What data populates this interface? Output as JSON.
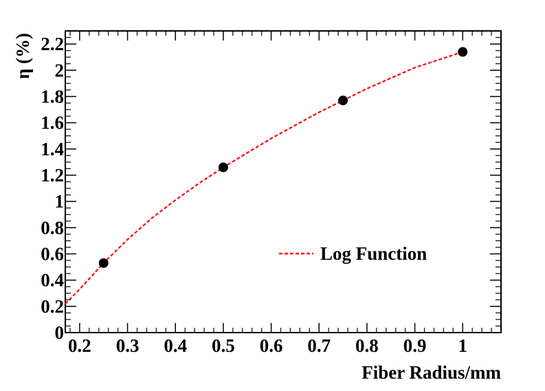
{
  "chart_data": {
    "type": "scatter",
    "xlabel": "Fiber Radius/mm",
    "ylabel": "η (%)",
    "xlim": [
      0.17,
      1.08
    ],
    "ylim": [
      0,
      2.3
    ],
    "x_ticks": [
      0.2,
      0.3,
      0.4,
      0.5,
      0.6,
      0.7,
      0.8,
      0.9,
      1
    ],
    "x_tick_labels": [
      "0.2",
      "0.3",
      "0.4",
      "0.5",
      "0.6",
      "0.7",
      "0.8",
      "0.9",
      "1"
    ],
    "y_ticks": [
      0,
      0.2,
      0.4,
      0.6,
      0.8,
      1,
      1.2,
      1.4,
      1.6,
      1.8,
      2,
      2.2
    ],
    "y_tick_labels": [
      "0",
      "0.2",
      "0.4",
      "0.6",
      "0.8",
      "1",
      "1.2",
      "1.4",
      "1.6",
      "1.8",
      "2",
      "2.2"
    ],
    "series": [
      {
        "marker": "circle",
        "color": "#000000",
        "x": [
          0.25,
          0.5,
          0.75,
          1.0
        ],
        "y": [
          0.53,
          1.26,
          1.77,
          2.14
        ]
      },
      {
        "name": "Log Function",
        "style": "dashed-line",
        "color": "#ff0000",
        "x": [
          0.17,
          0.2,
          0.25,
          0.3,
          0.35,
          0.4,
          0.45,
          0.5,
          0.55,
          0.6,
          0.65,
          0.7,
          0.75,
          0.8,
          0.85,
          0.9,
          0.95,
          1.0
        ],
        "y": [
          0.22,
          0.33,
          0.53,
          0.71,
          0.87,
          1.01,
          1.14,
          1.26,
          1.37,
          1.48,
          1.58,
          1.68,
          1.77,
          1.86,
          1.94,
          2.02,
          2.08,
          2.14
        ]
      }
    ],
    "legend": {
      "position": "center-right",
      "entries": [
        "Log Function"
      ]
    },
    "grid": false
  }
}
